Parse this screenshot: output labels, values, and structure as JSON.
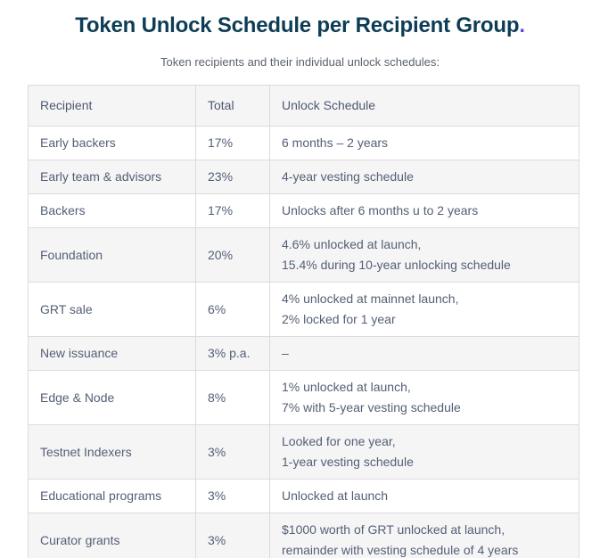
{
  "page": {
    "title": "Token Unlock Schedule per Recipient Group",
    "title_period": ".",
    "subtitle": "Token recipients and their individual unlock schedules:"
  },
  "colors": {
    "title": "#0d3d56",
    "accent_period": "#6747ed",
    "subtitle": "#5a626c",
    "table_text": "#545f74",
    "alt_row_bg": "#f5f5f6",
    "border": "#dcdcde"
  },
  "table": {
    "headers": [
      "Recipient",
      "Total",
      "Unlock Schedule"
    ],
    "rows": [
      {
        "recipient": "Early backers",
        "total": "17%",
        "schedule": [
          "6 months – 2 years"
        ]
      },
      {
        "recipient": "Early team & advisors",
        "total": "23%",
        "schedule": [
          "4-year vesting schedule"
        ]
      },
      {
        "recipient": "Backers",
        "total": "17%",
        "schedule": [
          "Unlocks after 6 months u to 2 years"
        ]
      },
      {
        "recipient": "Foundation",
        "total": "20%",
        "schedule": [
          "4.6% unlocked at launch,",
          "15.4% during 10-year unlocking schedule"
        ]
      },
      {
        "recipient": "GRT sale",
        "total": "6%",
        "schedule": [
          "4% unlocked at mainnet launch,",
          "2% locked for 1 year"
        ]
      },
      {
        "recipient": "New issuance",
        "total": "3% p.a.",
        "schedule": [
          "–"
        ]
      },
      {
        "recipient": "Edge & Node",
        "total": "8%",
        "schedule": [
          "1% unlocked at launch,",
          "7% with 5-year vesting schedule"
        ]
      },
      {
        "recipient": "Testnet Indexers",
        "total": "3%",
        "schedule": [
          "Looked for one year,",
          "1-year vesting schedule"
        ]
      },
      {
        "recipient": "Educational programs",
        "total": "3%",
        "schedule": [
          "Unlocked at launch"
        ]
      },
      {
        "recipient": "Curator grants",
        "total": "3%",
        "schedule": [
          "$1000 worth of GRT unlocked at launch,",
          "remainder with vesting schedule of 4 years"
        ]
      }
    ]
  }
}
